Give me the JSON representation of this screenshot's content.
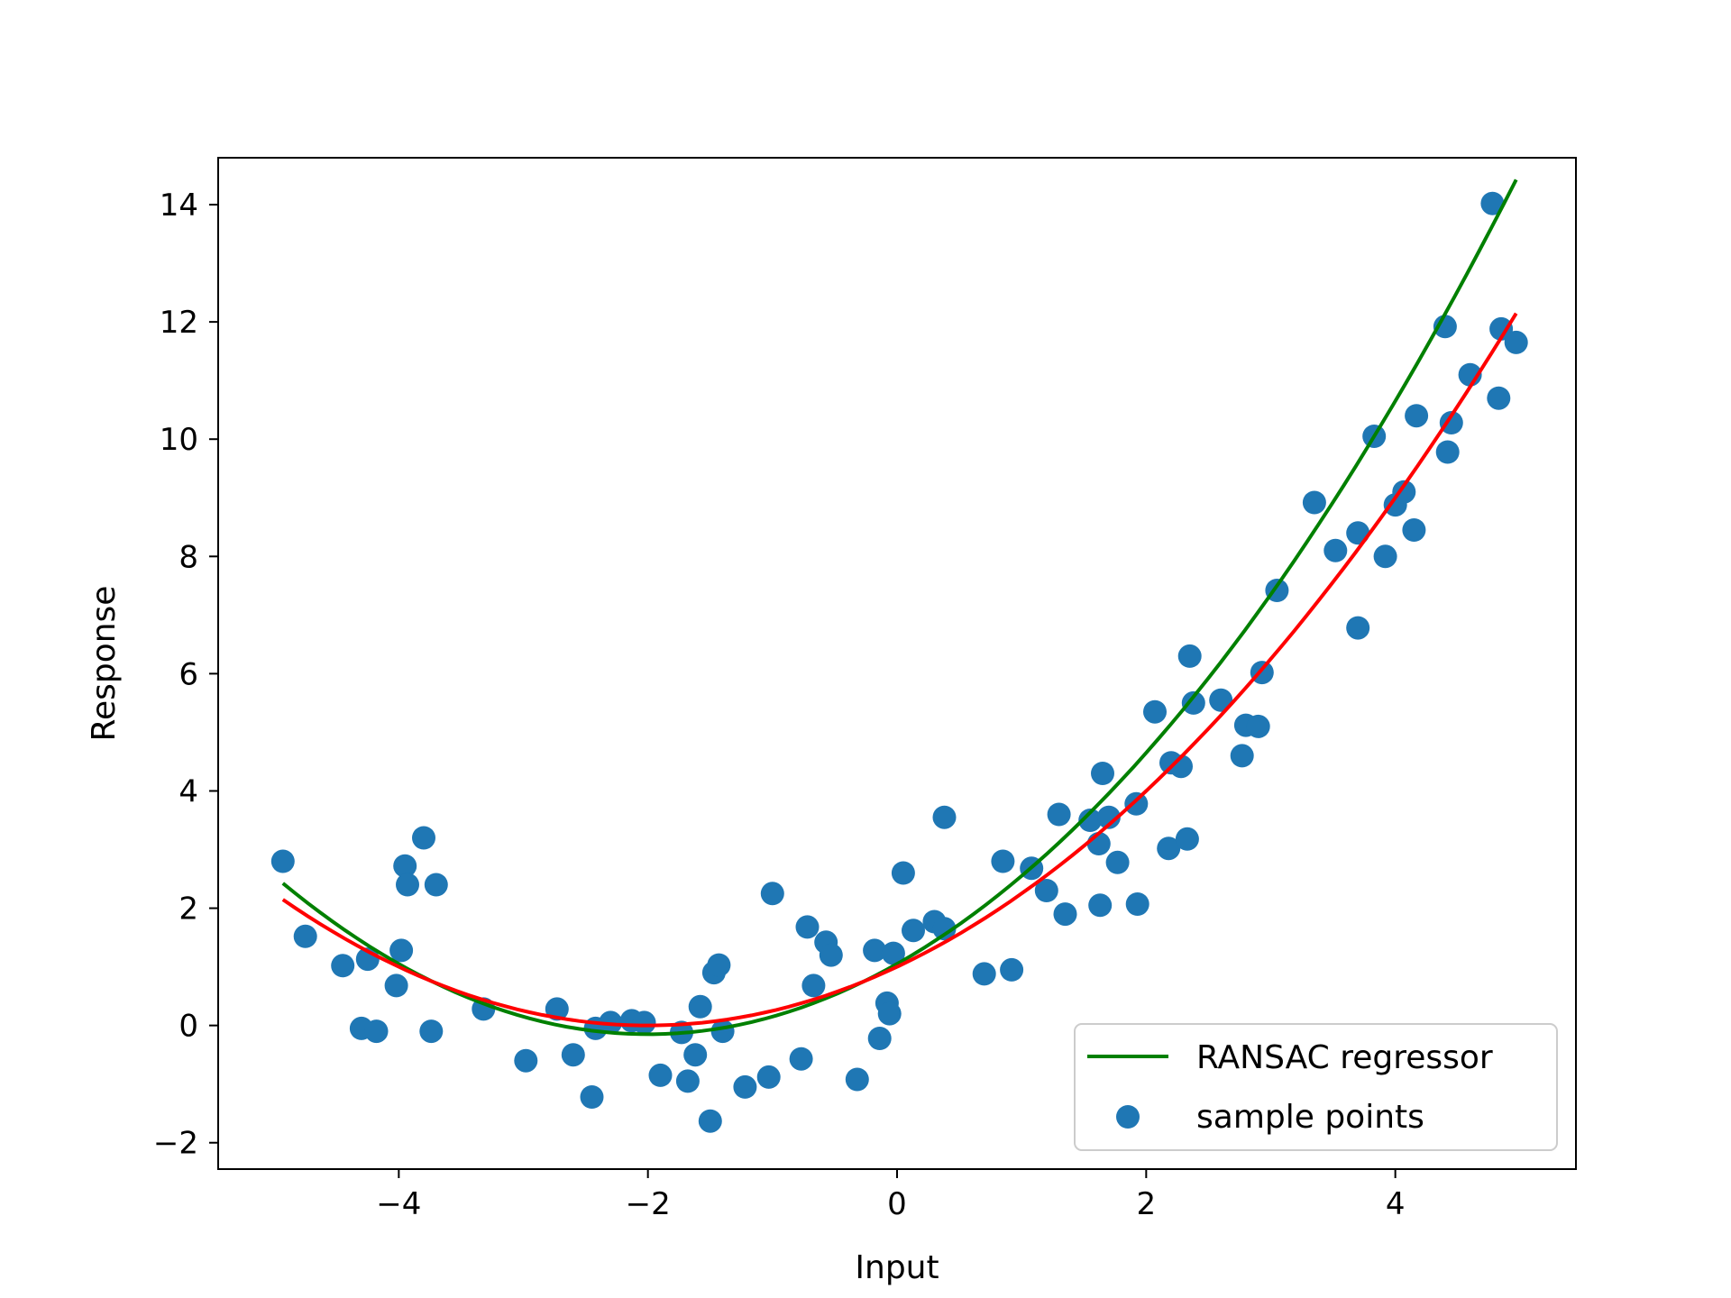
{
  "chart_data": {
    "type": "scatter",
    "title": "",
    "xlabel": "Input",
    "ylabel": "Response",
    "xlim": [
      -5.45,
      5.45
    ],
    "ylim": [
      -2.45,
      14.8
    ],
    "x_ticks": [
      -4,
      -2,
      0,
      2,
      4
    ],
    "x_tick_labels": [
      "−4",
      "−2",
      "0",
      "2",
      "4"
    ],
    "y_ticks": [
      -2,
      0,
      2,
      4,
      6,
      8,
      10,
      12,
      14
    ],
    "y_tick_labels": [
      "−2",
      "0",
      "2",
      "4",
      "6",
      "8",
      "10",
      "12",
      "14"
    ],
    "grid": false,
    "legend_position": "bottom-right",
    "legend": [
      "RANSAC regressor",
      "sample points"
    ],
    "colors": {
      "points": "#1f77b4",
      "ransac_line": "#008000",
      "second_line": "#ff0000"
    },
    "points": [
      [
        -4.93,
        2.8
      ],
      [
        -4.75,
        1.52
      ],
      [
        -4.45,
        1.02
      ],
      [
        -4.3,
        -0.05
      ],
      [
        -4.25,
        1.13
      ],
      [
        -4.18,
        -0.1
      ],
      [
        -4.02,
        0.68
      ],
      [
        -3.98,
        1.28
      ],
      [
        -3.95,
        2.72
      ],
      [
        -3.93,
        2.4
      ],
      [
        -3.8,
        3.2
      ],
      [
        -3.74,
        -0.1
      ],
      [
        -3.7,
        2.4
      ],
      [
        -3.32,
        0.28
      ],
      [
        -2.98,
        -0.6
      ],
      [
        -2.73,
        0.28
      ],
      [
        -2.6,
        -0.5
      ],
      [
        -2.45,
        -1.22
      ],
      [
        -2.42,
        -0.05
      ],
      [
        -2.3,
        0.05
      ],
      [
        -2.13,
        0.08
      ],
      [
        -2.03,
        0.05
      ],
      [
        -1.9,
        -0.85
      ],
      [
        -1.73,
        -0.12
      ],
      [
        -1.68,
        -0.95
      ],
      [
        -1.62,
        -0.5
      ],
      [
        -1.58,
        0.32
      ],
      [
        -1.5,
        -1.63
      ],
      [
        -1.47,
        0.9
      ],
      [
        -1.43,
        1.03
      ],
      [
        -1.4,
        -0.1
      ],
      [
        -1.22,
        -1.05
      ],
      [
        -1.03,
        -0.88
      ],
      [
        -1.0,
        2.25
      ],
      [
        -0.77,
        -0.57
      ],
      [
        -0.72,
        1.68
      ],
      [
        -0.67,
        0.68
      ],
      [
        -0.57,
        1.42
      ],
      [
        -0.53,
        1.2
      ],
      [
        -0.32,
        -0.92
      ],
      [
        -0.18,
        1.28
      ],
      [
        -0.14,
        -0.22
      ],
      [
        -0.08,
        0.38
      ],
      [
        -0.06,
        0.2
      ],
      [
        -0.03,
        1.23
      ],
      [
        0.05,
        2.6
      ],
      [
        0.13,
        1.62
      ],
      [
        0.3,
        1.77
      ],
      [
        0.38,
        1.65
      ],
      [
        0.38,
        3.55
      ],
      [
        0.7,
        0.88
      ],
      [
        0.85,
        2.8
      ],
      [
        0.92,
        0.95
      ],
      [
        1.08,
        2.68
      ],
      [
        1.2,
        2.3
      ],
      [
        1.3,
        3.6
      ],
      [
        1.35,
        1.9
      ],
      [
        1.55,
        3.5
      ],
      [
        1.62,
        3.1
      ],
      [
        1.63,
        2.05
      ],
      [
        1.65,
        4.3
      ],
      [
        1.7,
        3.55
      ],
      [
        1.77,
        2.78
      ],
      [
        1.92,
        3.78
      ],
      [
        1.93,
        2.07
      ],
      [
        2.07,
        5.35
      ],
      [
        2.18,
        3.02
      ],
      [
        2.2,
        4.48
      ],
      [
        2.28,
        4.42
      ],
      [
        2.33,
        3.18
      ],
      [
        2.35,
        6.3
      ],
      [
        2.38,
        5.5
      ],
      [
        2.6,
        5.55
      ],
      [
        2.77,
        4.6
      ],
      [
        2.8,
        5.12
      ],
      [
        2.9,
        5.1
      ],
      [
        2.93,
        6.02
      ],
      [
        3.05,
        7.42
      ],
      [
        3.35,
        8.92
      ],
      [
        3.52,
        8.1
      ],
      [
        3.7,
        6.78
      ],
      [
        3.7,
        8.4
      ],
      [
        3.83,
        10.05
      ],
      [
        3.92,
        8.0
      ],
      [
        4.0,
        8.88
      ],
      [
        4.07,
        9.1
      ],
      [
        4.15,
        8.45
      ],
      [
        4.17,
        10.4
      ],
      [
        4.4,
        11.92
      ],
      [
        4.42,
        9.78
      ],
      [
        4.45,
        10.28
      ],
      [
        4.6,
        11.1
      ],
      [
        4.78,
        14.02
      ],
      [
        4.83,
        10.7
      ],
      [
        4.85,
        11.88
      ],
      [
        4.97,
        11.65
      ]
    ],
    "ransac_line": {
      "name": "RANSAC regressor",
      "x_range": [
        -4.93,
        4.97
      ],
      "coefficients": {
        "a": 0.3,
        "b": 1.2,
        "c": 1.05
      }
    },
    "second_line": {
      "x_range": [
        -4.93,
        4.97
      ],
      "coefficients": {
        "a": 0.25,
        "b": 1.0,
        "c": 1.0
      }
    }
  }
}
